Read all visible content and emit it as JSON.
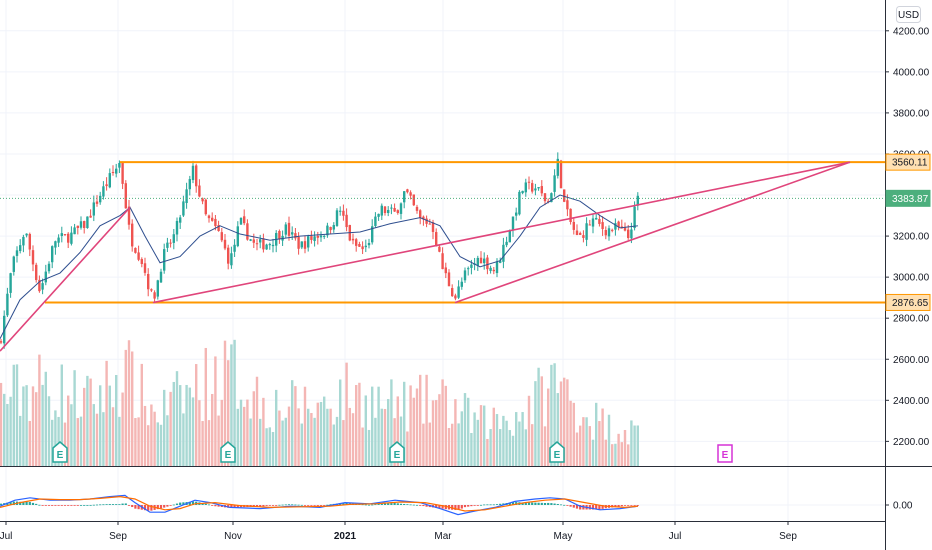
{
  "currency_button": "USD",
  "colors": {
    "up": "#26a69a",
    "down": "#ef5350",
    "vol_up": "#a8d8d3",
    "vol_down": "#f4b6b4",
    "level": "#ff9800",
    "trend": "#e0457b",
    "ma": "#2f4f8f",
    "last": "#4caf7d",
    "macd": "#2962ff",
    "signal": "#ff6d00",
    "earn_past": "#26a69a",
    "earn_future": "#d633d6",
    "grid": "#f0f3fa",
    "axis_line": "#2a2e39"
  },
  "chart_data": {
    "type": "candlestick",
    "price_axis": {
      "ticks": [
        "4200.00",
        "4000.00",
        "3800.00",
        "3600.00",
        "3200.00",
        "3000.00",
        "2800.00",
        "2600.00",
        "2400.00",
        "2200.00"
      ],
      "range": [
        2080,
        4350
      ]
    },
    "macd_axis": {
      "ticks": [
        "0.00"
      ]
    },
    "time_axis": {
      "labels": [
        {
          "text": "Jul",
          "bold": false
        },
        {
          "text": "Sep",
          "bold": false
        },
        {
          "text": "Nov",
          "bold": false
        },
        {
          "text": "2021",
          "bold": true
        },
        {
          "text": "Mar",
          "bold": false
        },
        {
          "text": "May",
          "bold": false
        },
        {
          "text": "Jul",
          "bold": false
        },
        {
          "text": "Sep",
          "bold": false
        }
      ]
    },
    "price_labels": {
      "resistance": "3560.11",
      "last": "3383.87",
      "support": "2876.65"
    },
    "levels": {
      "resistance": 3560.11,
      "support": 2876.65,
      "last": 3383.87
    },
    "trendlines": [
      {
        "from": [
          0,
          2640
        ],
        "to": [
          130,
          3340
        ]
      },
      {
        "from": [
          153,
          2876
        ],
        "to": [
          850,
          3560
        ]
      },
      {
        "from": [
          455,
          2876
        ],
        "to": [
          850,
          3560
        ]
      }
    ],
    "price_anchors": [
      [
        0,
        2680
      ],
      [
        12,
        3050
      ],
      [
        25,
        3230
      ],
      [
        40,
        2930
      ],
      [
        55,
        3180
      ],
      [
        70,
        3200
      ],
      [
        85,
        3260
      ],
      [
        100,
        3400
      ],
      [
        112,
        3500
      ],
      [
        120,
        3560
      ],
      [
        130,
        3200
      ],
      [
        142,
        3080
      ],
      [
        153,
        2880
      ],
      [
        163,
        3100
      ],
      [
        175,
        3210
      ],
      [
        193,
        3520
      ],
      [
        205,
        3300
      ],
      [
        218,
        3220
      ],
      [
        230,
        3070
      ],
      [
        240,
        3270
      ],
      [
        255,
        3150
      ],
      [
        270,
        3170
      ],
      [
        285,
        3240
      ],
      [
        300,
        3150
      ],
      [
        315,
        3200
      ],
      [
        328,
        3230
      ],
      [
        340,
        3330
      ],
      [
        352,
        3160
      ],
      [
        365,
        3130
      ],
      [
        380,
        3330
      ],
      [
        395,
        3310
      ],
      [
        405,
        3420
      ],
      [
        420,
        3280
      ],
      [
        432,
        3260
      ],
      [
        442,
        3050
      ],
      [
        455,
        2900
      ],
      [
        465,
        3010
      ],
      [
        480,
        3100
      ],
      [
        495,
        3030
      ],
      [
        510,
        3240
      ],
      [
        522,
        3430
      ],
      [
        535,
        3440
      ],
      [
        548,
        3360
      ],
      [
        558,
        3560
      ],
      [
        565,
        3330
      ],
      [
        578,
        3180
      ],
      [
        592,
        3280
      ],
      [
        605,
        3230
      ],
      [
        618,
        3240
      ],
      [
        628,
        3190
      ],
      [
        638,
        3385
      ]
    ],
    "ma_line": [
      [
        0,
        2700
      ],
      [
        20,
        2890
      ],
      [
        40,
        2980
      ],
      [
        60,
        3020
      ],
      [
        80,
        3120
      ],
      [
        100,
        3250
      ],
      [
        120,
        3300
      ],
      [
        130,
        3340
      ],
      [
        145,
        3200
      ],
      [
        160,
        3070
      ],
      [
        180,
        3100
      ],
      [
        200,
        3200
      ],
      [
        220,
        3250
      ],
      [
        240,
        3210
      ],
      [
        270,
        3180
      ],
      [
        300,
        3200
      ],
      [
        330,
        3210
      ],
      [
        360,
        3220
      ],
      [
        390,
        3260
      ],
      [
        420,
        3290
      ],
      [
        440,
        3250
      ],
      [
        460,
        3100
      ],
      [
        480,
        3050
      ],
      [
        500,
        3080
      ],
      [
        520,
        3200
      ],
      [
        540,
        3340
      ],
      [
        560,
        3400
      ],
      [
        580,
        3370
      ],
      [
        600,
        3300
      ],
      [
        620,
        3240
      ],
      [
        638,
        3250
      ]
    ],
    "volume_anchors": [
      [
        0,
        80
      ],
      [
        40,
        95
      ],
      [
        90,
        75
      ],
      [
        125,
        110
      ],
      [
        155,
        60
      ],
      [
        200,
        95
      ],
      [
        232,
        110
      ],
      [
        270,
        70
      ],
      [
        320,
        70
      ],
      [
        345,
        85
      ],
      [
        390,
        70
      ],
      [
        440,
        75
      ],
      [
        480,
        50
      ],
      [
        520,
        60
      ],
      [
        556,
        100
      ],
      [
        580,
        65
      ],
      [
        610,
        45
      ],
      [
        638,
        40
      ]
    ],
    "macd_line": [
      [
        0,
        -2
      ],
      [
        15,
        8
      ],
      [
        30,
        12
      ],
      [
        50,
        8
      ],
      [
        70,
        8
      ],
      [
        90,
        10
      ],
      [
        110,
        14
      ],
      [
        125,
        16
      ],
      [
        135,
        4
      ],
      [
        150,
        -12
      ],
      [
        165,
        -12
      ],
      [
        180,
        -2
      ],
      [
        195,
        8
      ],
      [
        210,
        4
      ],
      [
        230,
        -4
      ],
      [
        260,
        -6
      ],
      [
        290,
        -2
      ],
      [
        320,
        -4
      ],
      [
        345,
        4
      ],
      [
        370,
        2
      ],
      [
        395,
        8
      ],
      [
        420,
        4
      ],
      [
        440,
        -6
      ],
      [
        458,
        -16
      ],
      [
        475,
        -10
      ],
      [
        495,
        -4
      ],
      [
        515,
        6
      ],
      [
        535,
        10
      ],
      [
        550,
        12
      ],
      [
        565,
        10
      ],
      [
        580,
        -2
      ],
      [
        600,
        -8
      ],
      [
        620,
        -6
      ],
      [
        638,
        -2
      ]
    ],
    "signal_line": [
      [
        0,
        -4
      ],
      [
        20,
        4
      ],
      [
        40,
        10
      ],
      [
        60,
        9
      ],
      [
        80,
        9
      ],
      [
        100,
        11
      ],
      [
        120,
        14
      ],
      [
        135,
        10
      ],
      [
        150,
        -2
      ],
      [
        165,
        -8
      ],
      [
        180,
        -6
      ],
      [
        195,
        2
      ],
      [
        215,
        4
      ],
      [
        240,
        -1
      ],
      [
        270,
        -4
      ],
      [
        300,
        -3
      ],
      [
        330,
        -2
      ],
      [
        350,
        1
      ],
      [
        375,
        2
      ],
      [
        400,
        5
      ],
      [
        425,
        4
      ],
      [
        445,
        -2
      ],
      [
        465,
        -10
      ],
      [
        485,
        -8
      ],
      [
        505,
        -2
      ],
      [
        525,
        4
      ],
      [
        545,
        8
      ],
      [
        565,
        10
      ],
      [
        585,
        4
      ],
      [
        605,
        -2
      ],
      [
        625,
        -4
      ],
      [
        638,
        -2
      ]
    ],
    "earnings_markers": [
      {
        "label": "E",
        "x": 60,
        "past": true
      },
      {
        "label": "E",
        "x": 228,
        "past": true
      },
      {
        "label": "E",
        "x": 397,
        "past": true
      },
      {
        "label": "E",
        "x": 557,
        "past": true
      },
      {
        "label": "E",
        "x": 725,
        "past": false
      }
    ]
  }
}
